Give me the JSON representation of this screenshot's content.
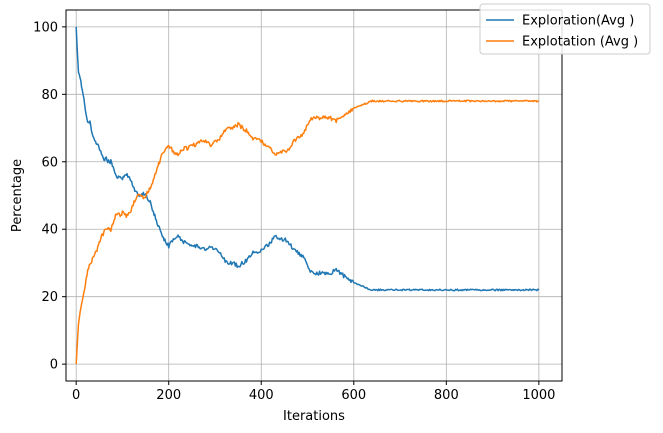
{
  "chart_data": {
    "type": "line",
    "title": "",
    "xlabel": "Iterations",
    "ylabel": "Percentage",
    "xlim": [
      -22,
      1050
    ],
    "ylim": [
      -5,
      105
    ],
    "xticks": [
      0,
      200,
      400,
      600,
      800,
      1000
    ],
    "yticks": [
      0,
      20,
      40,
      60,
      80,
      100
    ],
    "grid": true,
    "legend_position": "top-right",
    "series": [
      {
        "name": "Exploration(Avg )",
        "color": "#1f77b4",
        "points": [
          [
            0,
            100
          ],
          [
            5,
            86
          ],
          [
            10,
            84
          ],
          [
            15,
            80
          ],
          [
            20,
            75
          ],
          [
            25,
            72
          ],
          [
            30,
            72
          ],
          [
            35,
            68
          ],
          [
            40,
            66
          ],
          [
            45,
            65
          ],
          [
            50,
            64
          ],
          [
            55,
            62
          ],
          [
            60,
            60
          ],
          [
            65,
            61
          ],
          [
            70,
            60
          ],
          [
            75,
            60
          ],
          [
            80,
            58
          ],
          [
            85,
            56
          ],
          [
            90,
            55
          ],
          [
            95,
            56
          ],
          [
            100,
            55
          ],
          [
            105,
            56
          ],
          [
            110,
            56
          ],
          [
            115,
            55
          ],
          [
            120,
            54
          ],
          [
            125,
            52
          ],
          [
            130,
            51
          ],
          [
            135,
            50
          ],
          [
            140,
            50
          ],
          [
            145,
            51
          ],
          [
            150,
            50
          ],
          [
            155,
            49
          ],
          [
            160,
            48
          ],
          [
            165,
            46
          ],
          [
            170,
            44
          ],
          [
            175,
            42
          ],
          [
            180,
            40
          ],
          [
            185,
            38
          ],
          [
            190,
            37
          ],
          [
            195,
            36
          ],
          [
            200,
            35
          ],
          [
            210,
            37
          ],
          [
            220,
            38
          ],
          [
            230,
            36
          ],
          [
            240,
            36
          ],
          [
            250,
            35
          ],
          [
            260,
            35
          ],
          [
            270,
            34
          ],
          [
            280,
            34
          ],
          [
            290,
            35
          ],
          [
            300,
            34
          ],
          [
            310,
            33
          ],
          [
            320,
            31
          ],
          [
            330,
            30
          ],
          [
            340,
            30
          ],
          [
            350,
            29
          ],
          [
            360,
            30
          ],
          [
            370,
            31
          ],
          [
            380,
            33
          ],
          [
            390,
            33
          ],
          [
            400,
            34
          ],
          [
            410,
            35
          ],
          [
            420,
            36
          ],
          [
            430,
            38
          ],
          [
            440,
            37
          ],
          [
            450,
            37
          ],
          [
            460,
            36
          ],
          [
            470,
            34
          ],
          [
            480,
            33
          ],
          [
            490,
            32
          ],
          [
            500,
            29
          ],
          [
            510,
            27
          ],
          [
            520,
            27
          ],
          [
            530,
            27
          ],
          [
            540,
            27
          ],
          [
            550,
            27
          ],
          [
            560,
            28
          ],
          [
            570,
            27
          ],
          [
            580,
            26
          ],
          [
            590,
            25
          ],
          [
            600,
            24
          ],
          [
            610,
            23.5
          ],
          [
            620,
            23
          ],
          [
            630,
            22.5
          ],
          [
            640,
            22
          ],
          [
            660,
            22
          ],
          [
            680,
            22
          ],
          [
            700,
            22
          ],
          [
            720,
            22
          ],
          [
            740,
            22
          ],
          [
            760,
            22
          ],
          [
            780,
            22
          ],
          [
            800,
            22
          ],
          [
            820,
            22
          ],
          [
            840,
            22
          ],
          [
            860,
            22
          ],
          [
            880,
            22
          ],
          [
            900,
            22
          ],
          [
            920,
            22
          ],
          [
            940,
            22
          ],
          [
            960,
            22
          ],
          [
            980,
            22
          ],
          [
            1000,
            22
          ]
        ]
      },
      {
        "name": "Explotation (Avg )",
        "color": "#ff7f0e",
        "points": [
          [
            0,
            0
          ],
          [
            5,
            12
          ],
          [
            10,
            16
          ],
          [
            15,
            20
          ],
          [
            20,
            24
          ],
          [
            25,
            28
          ],
          [
            30,
            30
          ],
          [
            35,
            31
          ],
          [
            40,
            33
          ],
          [
            45,
            34
          ],
          [
            50,
            36
          ],
          [
            55,
            38
          ],
          [
            60,
            39
          ],
          [
            65,
            40
          ],
          [
            70,
            40
          ],
          [
            75,
            40
          ],
          [
            80,
            42
          ],
          [
            85,
            44
          ],
          [
            90,
            45
          ],
          [
            95,
            44
          ],
          [
            100,
            45
          ],
          [
            105,
            44
          ],
          [
            110,
            44
          ],
          [
            115,
            45
          ],
          [
            120,
            46
          ],
          [
            125,
            48
          ],
          [
            130,
            49
          ],
          [
            135,
            50
          ],
          [
            140,
            50
          ],
          [
            145,
            49
          ],
          [
            150,
            50
          ],
          [
            155,
            51
          ],
          [
            160,
            52
          ],
          [
            165,
            54
          ],
          [
            170,
            56
          ],
          [
            175,
            58
          ],
          [
            180,
            60
          ],
          [
            185,
            62
          ],
          [
            190,
            63
          ],
          [
            195,
            64
          ],
          [
            200,
            65
          ],
          [
            210,
            63
          ],
          [
            220,
            62
          ],
          [
            230,
            64
          ],
          [
            240,
            64
          ],
          [
            250,
            65
          ],
          [
            260,
            65
          ],
          [
            270,
            66
          ],
          [
            280,
            66
          ],
          [
            290,
            65
          ],
          [
            300,
            66
          ],
          [
            310,
            67
          ],
          [
            320,
            69
          ],
          [
            330,
            70
          ],
          [
            340,
            70
          ],
          [
            350,
            71
          ],
          [
            360,
            70
          ],
          [
            370,
            69
          ],
          [
            380,
            67
          ],
          [
            390,
            67
          ],
          [
            400,
            66
          ],
          [
            410,
            65
          ],
          [
            420,
            64
          ],
          [
            430,
            62
          ],
          [
            440,
            63
          ],
          [
            450,
            63
          ],
          [
            460,
            64
          ],
          [
            470,
            66
          ],
          [
            480,
            67
          ],
          [
            490,
            68
          ],
          [
            500,
            71
          ],
          [
            510,
            73
          ],
          [
            520,
            73
          ],
          [
            530,
            73
          ],
          [
            540,
            73
          ],
          [
            550,
            73
          ],
          [
            560,
            72
          ],
          [
            570,
            73
          ],
          [
            580,
            74
          ],
          [
            590,
            75
          ],
          [
            600,
            76
          ],
          [
            610,
            76.5
          ],
          [
            620,
            77
          ],
          [
            630,
            77.5
          ],
          [
            640,
            78
          ],
          [
            660,
            78
          ],
          [
            680,
            78
          ],
          [
            700,
            78
          ],
          [
            720,
            78
          ],
          [
            740,
            78
          ],
          [
            760,
            78
          ],
          [
            780,
            78
          ],
          [
            800,
            78
          ],
          [
            820,
            78
          ],
          [
            840,
            78
          ],
          [
            860,
            78
          ],
          [
            880,
            78
          ],
          [
            900,
            78
          ],
          [
            920,
            78
          ],
          [
            940,
            78
          ],
          [
            960,
            78
          ],
          [
            980,
            78
          ],
          [
            1000,
            78
          ]
        ]
      }
    ]
  }
}
